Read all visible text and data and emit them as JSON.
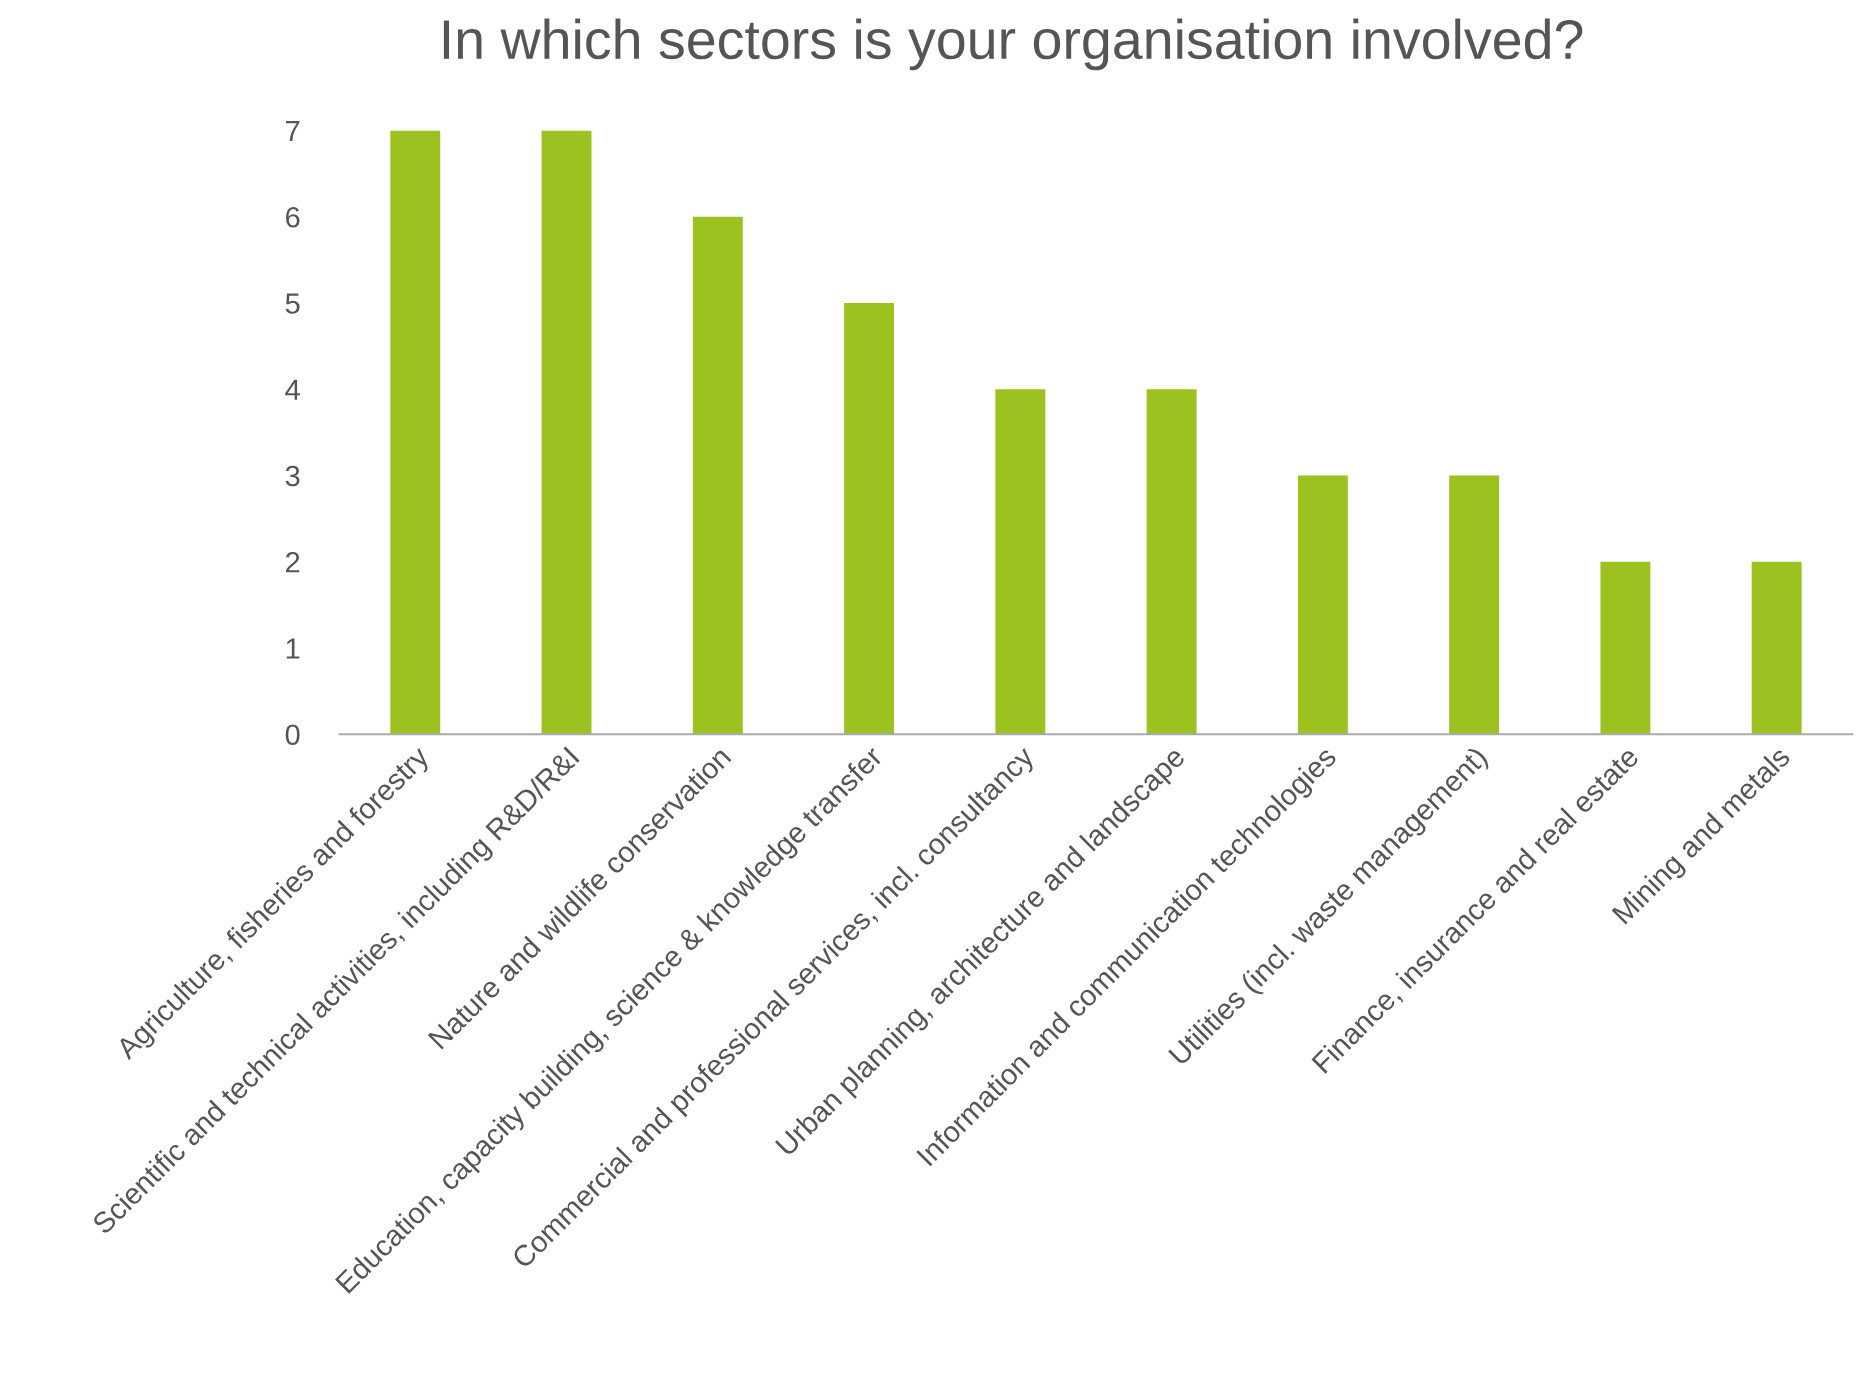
{
  "chart_data": {
    "type": "bar",
    "title": "In which sectors is your organisation involved?",
    "categories": [
      "Agriculture, fisheries and forestry",
      "Scientific and technical activities, including R&D/R&I",
      "Nature and wildlife conservation",
      "Education, capacity building, science & knowledge transfer",
      "Commercial and professional services, incl. consultancy",
      "Urban planning, architecture and landscape",
      "Information and communication technologies",
      "Utilities (incl. waste management)",
      "Finance, insurance and real estate",
      "Mining and metals"
    ],
    "values": [
      7,
      7,
      6,
      5,
      4,
      4,
      3,
      3,
      2,
      2
    ],
    "color": "#9bc21f",
    "ylim": [
      0,
      7
    ],
    "yticks": [
      0,
      1,
      2,
      3,
      4,
      5,
      6,
      7
    ],
    "grid": false,
    "legend": false
  }
}
